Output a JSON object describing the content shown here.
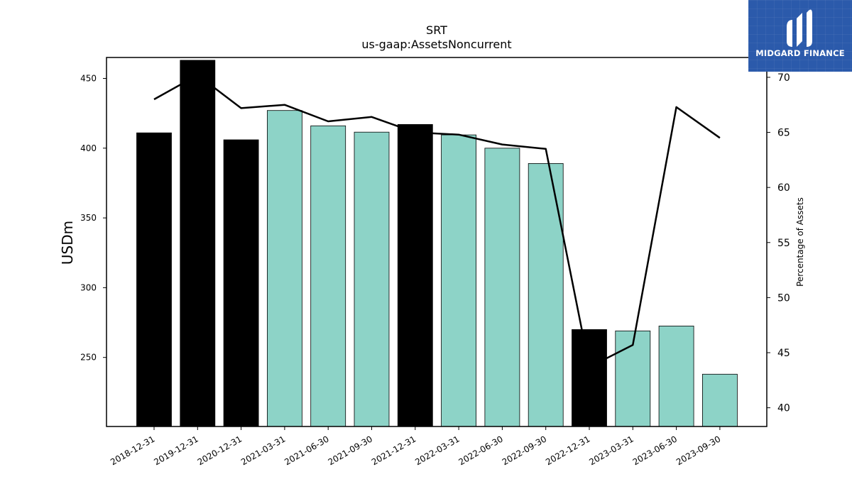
{
  "chart_data": {
    "type": "bar",
    "title": "SRT",
    "subtitle": "us-gaap:AssetsNoncurrent",
    "ylabel": "USDm",
    "y2label": "Percentage of Assets",
    "categories": [
      "2018-12-31",
      "2019-12-31",
      "2020-12-31",
      "2021-03-31",
      "2021-06-30",
      "2021-09-30",
      "2021-12-31",
      "2022-03-31",
      "2022-06-30",
      "2022-09-30",
      "2022-12-31",
      "2023-03-31",
      "2023-06-30",
      "2023-09-30"
    ],
    "values": [
      411,
      463,
      406,
      427,
      416,
      411.5,
      417,
      409.5,
      400,
      389,
      270,
      269,
      272.5,
      238
    ],
    "bar_colors": [
      "#000000",
      "#000000",
      "#000000",
      "#8dd3c7",
      "#8dd3c7",
      "#8dd3c7",
      "#000000",
      "#8dd3c7",
      "#8dd3c7",
      "#8dd3c7",
      "#000000",
      "#8dd3c7",
      "#8dd3c7",
      "#8dd3c7"
    ],
    "line_values": [
      68.0,
      70.2,
      67.2,
      67.5,
      66.0,
      66.4,
      65.0,
      64.8,
      63.9,
      63.5,
      43.7,
      45.7,
      67.3,
      64.5
    ],
    "ylim": [
      200.5,
      465
    ],
    "y2lim": [
      38.3,
      71.8
    ],
    "yticks": [
      250,
      300,
      350,
      400,
      450
    ],
    "y2ticks": [
      40,
      45,
      50,
      55,
      60,
      65,
      70
    ],
    "grid": false,
    "legend": "none"
  },
  "logo": {
    "text": "MIDGARD FINANCE"
  },
  "colors": {
    "annual_bar": "#000000",
    "quarterly_bar": "#8dd3c7",
    "line": "#000000",
    "logo_bg": "#2b5aab"
  }
}
